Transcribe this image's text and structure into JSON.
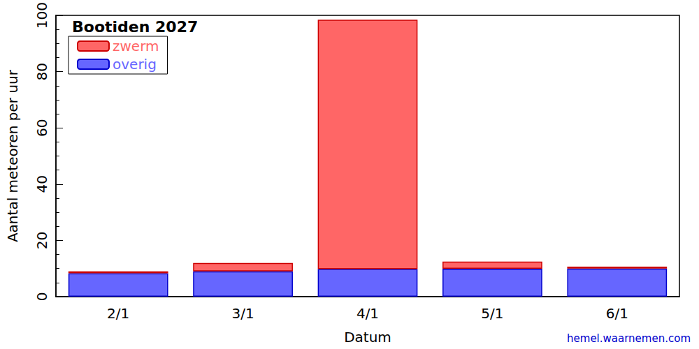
{
  "chart_data": {
    "type": "bar",
    "title": "Bootiden 2027",
    "x_label": "Datum",
    "y_label": "Aantal meteoren per uur",
    "annotation": "hemel.waarnemen.com",
    "categories": [
      "2/1",
      "3/1",
      "4/1",
      "5/1",
      "6/1"
    ],
    "series": [
      {
        "name": "overig",
        "color": "#6666ff",
        "values": [
          8.3,
          9.0,
          9.8,
          9.9,
          10.0
        ]
      },
      {
        "name": "zwerm",
        "color": "#ff6666",
        "values": [
          0.7,
          3.0,
          88.7,
          2.6,
          0.7
        ]
      }
    ],
    "ylim": [
      0,
      100
    ],
    "yticks": [
      0,
      20,
      40,
      60,
      80,
      100
    ],
    "stacked": true,
    "legend": "top-left",
    "grid": false
  }
}
